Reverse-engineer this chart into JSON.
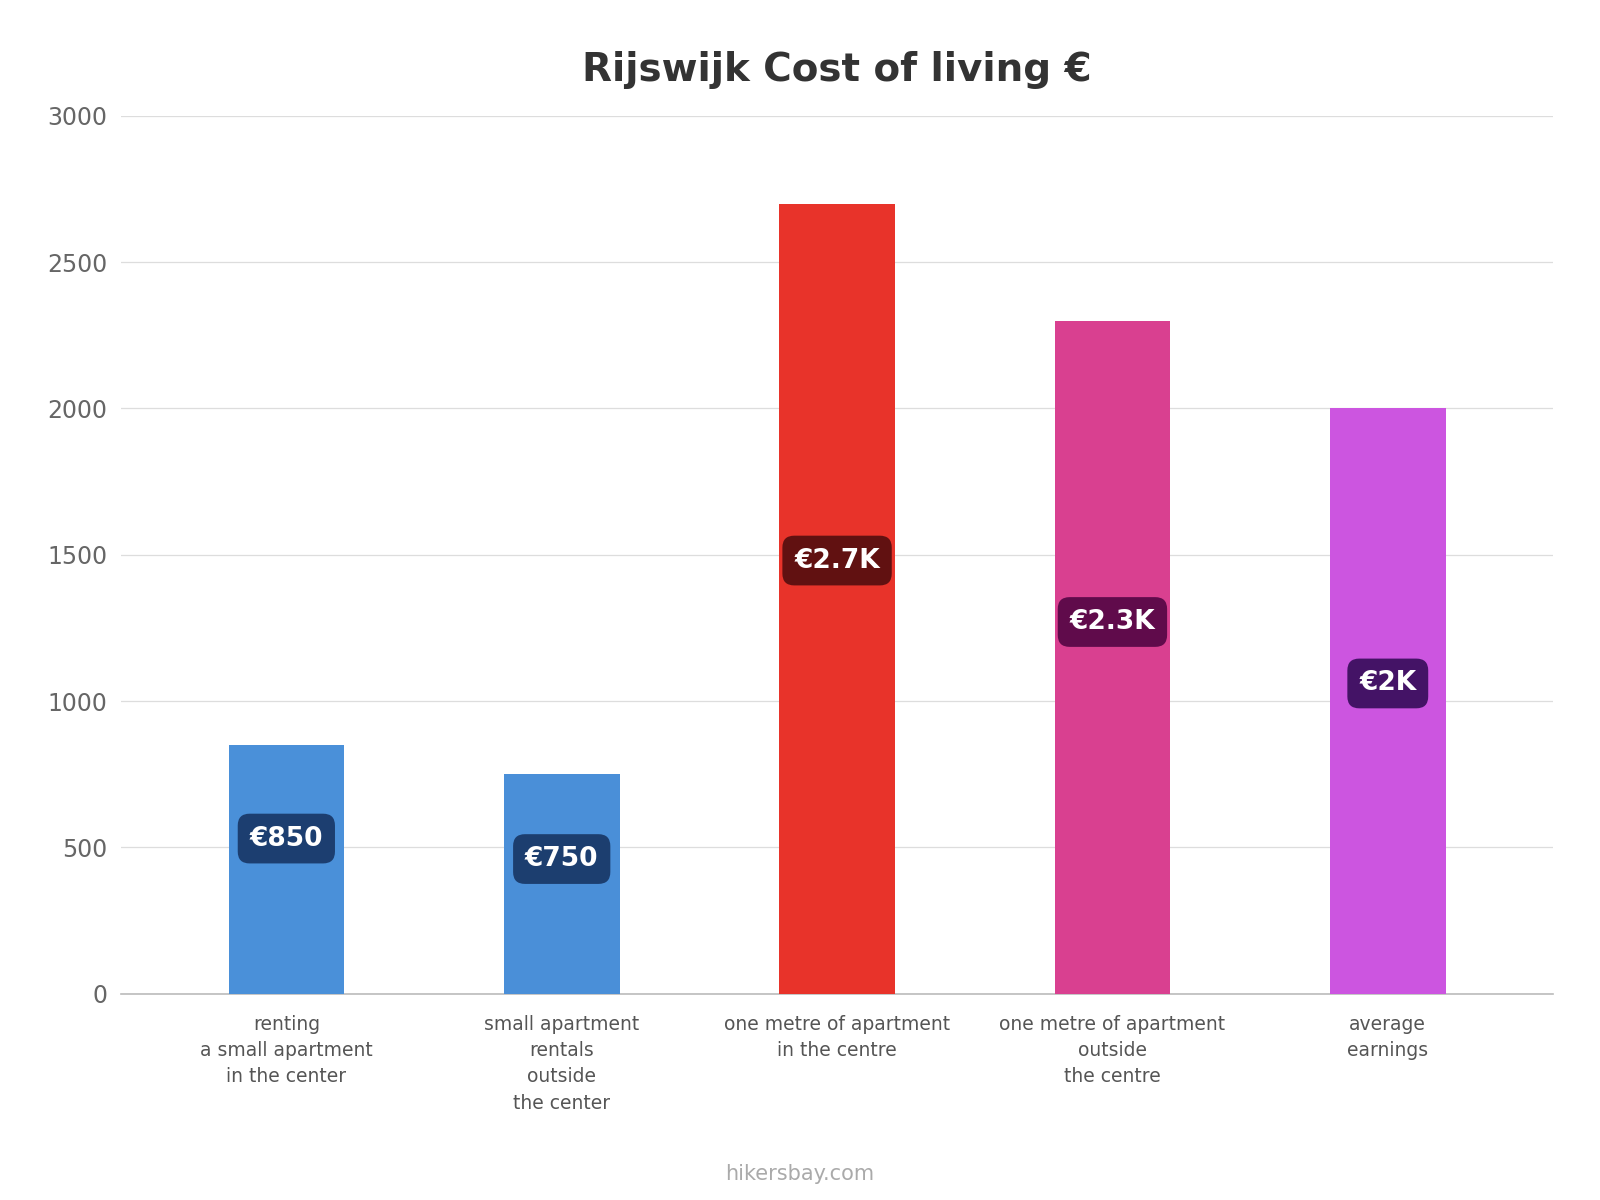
{
  "title": "Rijswijk Cost of living €",
  "title_fontsize": 28,
  "categories": [
    "renting\na small apartment\nin the center",
    "small apartment\nrentals\noutside\nthe center",
    "one metre of apartment\nin the centre",
    "one metre of apartment\noutside\nthe centre",
    "average\nearnings"
  ],
  "values": [
    850,
    750,
    2700,
    2300,
    2000
  ],
  "bar_colors": [
    "#4a90d9",
    "#4a8fd8",
    "#e8332a",
    "#d94090",
    "#cc55e0"
  ],
  "label_texts": [
    "€850",
    "€750",
    "€2.7K",
    "€2.3K",
    "€2K"
  ],
  "label_box_colors": [
    "#1a3a6a",
    "#1a3a6a",
    "#5a1010",
    "#5a0848",
    "#3d1060"
  ],
  "label_y_positions": [
    530,
    460,
    1480,
    1270,
    1060
  ],
  "ylim": [
    0,
    3000
  ],
  "yticks": [
    0,
    500,
    1000,
    1500,
    2000,
    2500,
    3000
  ],
  "watermark": "hikersbay.com",
  "background_color": "#ffffff",
  "bar_width": 0.42
}
